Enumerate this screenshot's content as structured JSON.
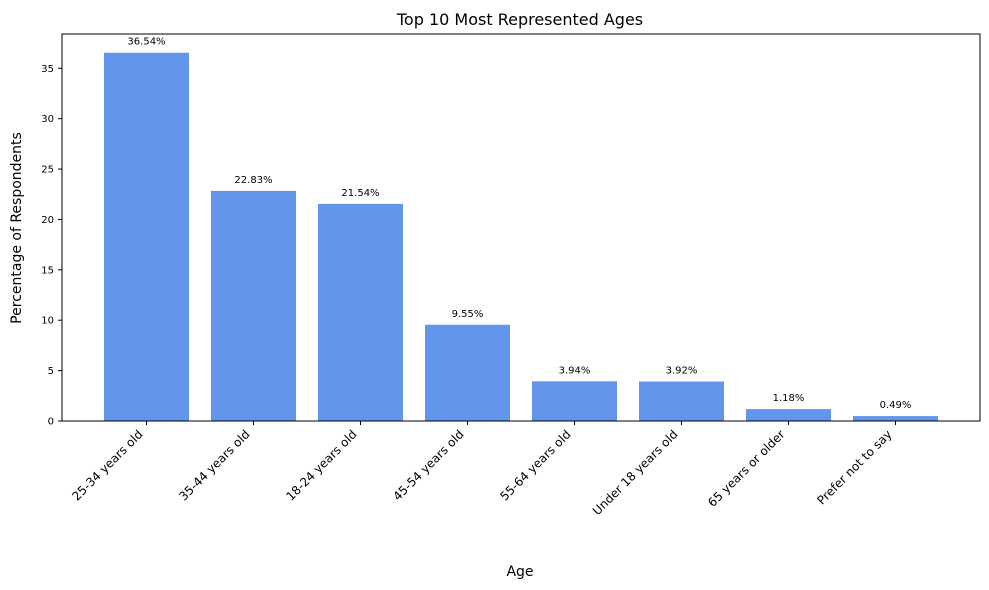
{
  "chart_data": {
    "type": "bar",
    "title": "Top 10 Most Represented Ages",
    "xlabel": "Age",
    "ylabel": "Percentage of Respondents",
    "categories": [
      "25-34 years old",
      "35-44 years old",
      "18-24 years old",
      "45-54 years old",
      "55-64 years old",
      "Under 18 years old",
      "65 years or older",
      "Prefer not to say"
    ],
    "values": [
      36.54,
      22.83,
      21.54,
      9.55,
      3.94,
      3.92,
      1.18,
      0.49
    ],
    "data_labels": [
      "36.54%",
      "22.83%",
      "21.54%",
      "9.55%",
      "3.94%",
      "3.92%",
      "1.18%",
      "0.49%"
    ],
    "ylim": [
      0,
      38.4
    ],
    "yticks": [
      0,
      5,
      10,
      15,
      20,
      25,
      30,
      35
    ],
    "bar_color": "#6495ED",
    "grid": false,
    "legend": "none"
  }
}
